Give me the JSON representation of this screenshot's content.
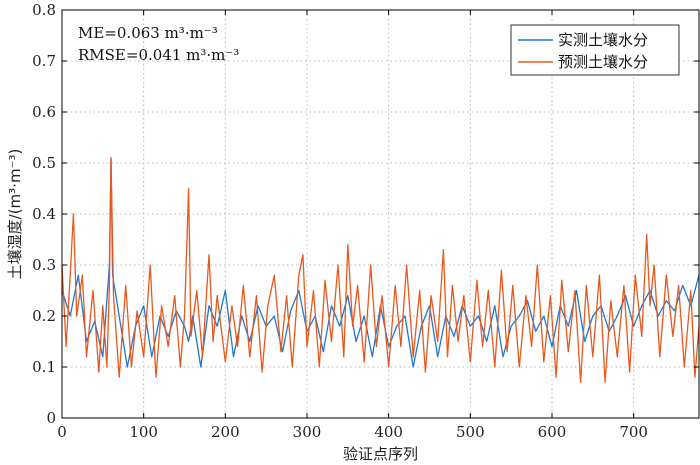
{
  "chart_data": {
    "type": "line",
    "xlabel": "验证点序列",
    "ylabel": "土壤湿度/(m³·m⁻³)",
    "xlim": [
      0,
      780
    ],
    "ylim": [
      0,
      0.8
    ],
    "xticks": [
      0,
      100,
      200,
      300,
      400,
      500,
      600,
      700
    ],
    "yticks": [
      0,
      0.1,
      0.2,
      0.3,
      0.4,
      0.5,
      0.6,
      0.7,
      0.8
    ],
    "xtick_labels": [
      "0",
      "100",
      "200",
      "300",
      "400",
      "500",
      "600",
      "700"
    ],
    "ytick_labels": [
      "0",
      "0.1",
      "0.2",
      "0.3",
      "0.4",
      "0.5",
      "0.6",
      "0.7",
      "0.8"
    ],
    "grid": true,
    "legend_position": "top-right",
    "annotations": {
      "me_label": "ME=0.063 m³·m⁻³",
      "rmse_label": "RMSE=0.041 m³·m⁻³"
    },
    "series": [
      {
        "name": "实测土壤水分",
        "color": "#1f77d6",
        "x": [
          0,
          10,
          20,
          30,
          40,
          50,
          58,
          60,
          62,
          70,
          80,
          90,
          100,
          110,
          120,
          130,
          140,
          150,
          155,
          160,
          170,
          180,
          190,
          200,
          210,
          220,
          230,
          240,
          250,
          260,
          270,
          280,
          290,
          300,
          310,
          320,
          330,
          340,
          350,
          360,
          370,
          380,
          390,
          400,
          410,
          420,
          430,
          440,
          450,
          460,
          470,
          480,
          490,
          500,
          510,
          520,
          530,
          540,
          550,
          560,
          570,
          580,
          590,
          600,
          610,
          620,
          630,
          640,
          650,
          660,
          670,
          680,
          690,
          700,
          710,
          720,
          730,
          740,
          750,
          760,
          770,
          780
        ],
        "values": [
          0.25,
          0.2,
          0.28,
          0.15,
          0.19,
          0.12,
          0.3,
          0.51,
          0.28,
          0.2,
          0.1,
          0.18,
          0.22,
          0.12,
          0.2,
          0.16,
          0.21,
          0.18,
          0.15,
          0.2,
          0.1,
          0.22,
          0.18,
          0.25,
          0.12,
          0.2,
          0.15,
          0.22,
          0.18,
          0.2,
          0.13,
          0.21,
          0.25,
          0.17,
          0.2,
          0.13,
          0.22,
          0.18,
          0.24,
          0.15,
          0.2,
          0.12,
          0.22,
          0.14,
          0.18,
          0.2,
          0.1,
          0.18,
          0.22,
          0.12,
          0.2,
          0.16,
          0.22,
          0.18,
          0.2,
          0.15,
          0.22,
          0.12,
          0.18,
          0.2,
          0.23,
          0.17,
          0.2,
          0.14,
          0.22,
          0.18,
          0.25,
          0.15,
          0.2,
          0.22,
          0.17,
          0.2,
          0.24,
          0.18,
          0.22,
          0.25,
          0.2,
          0.23,
          0.21,
          0.26,
          0.22,
          0.28
        ]
      },
      {
        "name": "预测土壤水分",
        "color": "#e8581c",
        "x": [
          0,
          5,
          10,
          14,
          18,
          25,
          30,
          38,
          45,
          50,
          55,
          58,
          60,
          63,
          70,
          78,
          85,
          92,
          100,
          108,
          115,
          122,
          130,
          138,
          145,
          150,
          155,
          158,
          165,
          172,
          180,
          185,
          190,
          200,
          208,
          215,
          222,
          230,
          238,
          245,
          252,
          260,
          268,
          275,
          282,
          290,
          295,
          300,
          308,
          315,
          322,
          330,
          338,
          345,
          350,
          356,
          362,
          370,
          378,
          385,
          392,
          400,
          408,
          415,
          422,
          430,
          438,
          445,
          452,
          460,
          467,
          472,
          478,
          485,
          492,
          500,
          508,
          515,
          522,
          530,
          538,
          545,
          552,
          560,
          568,
          575,
          582,
          590,
          598,
          605,
          612,
          620,
          628,
          635,
          642,
          650,
          658,
          665,
          672,
          680,
          688,
          695,
          702,
          710,
          716,
          720,
          725,
          732,
          740,
          748,
          755,
          762,
          770,
          775,
          780
        ],
        "values": [
          0.3,
          0.14,
          0.28,
          0.4,
          0.2,
          0.28,
          0.12,
          0.25,
          0.09,
          0.22,
          0.1,
          0.26,
          0.51,
          0.24,
          0.08,
          0.26,
          0.1,
          0.21,
          0.12,
          0.3,
          0.08,
          0.22,
          0.14,
          0.24,
          0.1,
          0.2,
          0.45,
          0.16,
          0.25,
          0.12,
          0.32,
          0.15,
          0.24,
          0.11,
          0.22,
          0.14,
          0.26,
          0.12,
          0.24,
          0.09,
          0.22,
          0.28,
          0.13,
          0.24,
          0.1,
          0.28,
          0.32,
          0.14,
          0.25,
          0.1,
          0.27,
          0.15,
          0.3,
          0.12,
          0.34,
          0.18,
          0.26,
          0.11,
          0.3,
          0.14,
          0.24,
          0.1,
          0.26,
          0.14,
          0.3,
          0.12,
          0.25,
          0.09,
          0.24,
          0.15,
          0.33,
          0.12,
          0.26,
          0.15,
          0.24,
          0.11,
          0.27,
          0.14,
          0.25,
          0.1,
          0.29,
          0.13,
          0.26,
          0.1,
          0.24,
          0.14,
          0.3,
          0.11,
          0.24,
          0.08,
          0.27,
          0.13,
          0.25,
          0.07,
          0.26,
          0.12,
          0.28,
          0.07,
          0.23,
          0.12,
          0.26,
          0.09,
          0.28,
          0.16,
          0.36,
          0.22,
          0.3,
          0.12,
          0.28,
          0.16,
          0.26,
          0.1,
          0.25,
          0.08,
          0.18
        ]
      }
    ]
  }
}
